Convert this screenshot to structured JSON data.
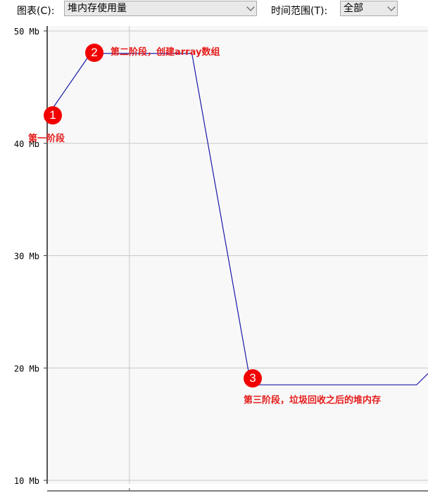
{
  "toolbar": {
    "chart_label": "图表(C):",
    "chart_value": "堆内存使用量",
    "time_label": "时间范围(T):",
    "time_value": "全部"
  },
  "annotations": [
    {
      "marker": "1",
      "text": "第一阶段"
    },
    {
      "marker": "2",
      "text": "第二阶段，创建array数组"
    },
    {
      "marker": "3",
      "text": "第三阶段，垃圾回收之后的堆内存"
    }
  ],
  "chart_data": {
    "type": "line",
    "title": "",
    "xlabel": "",
    "ylabel": "",
    "ylim": [
      10,
      50
    ],
    "yticks": [
      "50 Mb",
      "40 Mb",
      "30 Mb",
      "20 Mb",
      "10 Mb"
    ],
    "grid": true,
    "line_color": "#1a1aa8",
    "series": [
      {
        "x": [
          0,
          1.1,
          1.5,
          3.8,
          5.35,
          9.7,
          10
        ],
        "y": [
          42.4,
          47.8,
          48.0,
          48.0,
          18.5,
          18.5,
          19.5
        ]
      }
    ]
  }
}
